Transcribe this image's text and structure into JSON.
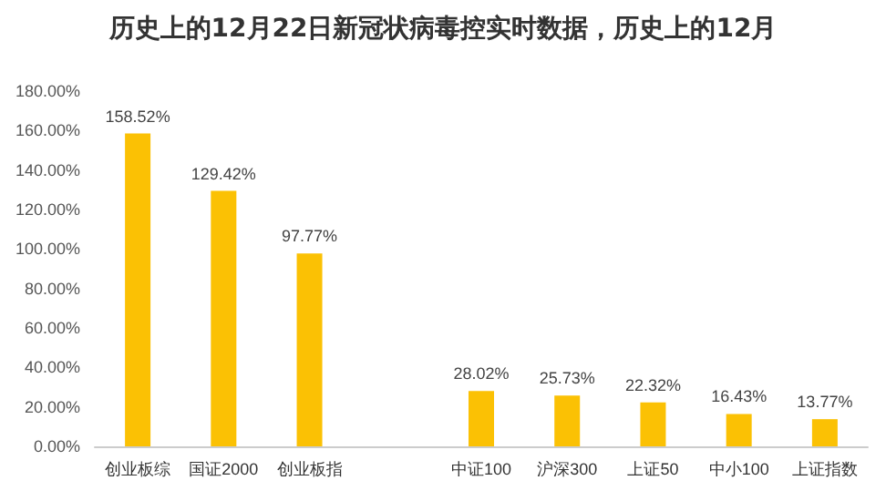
{
  "chart_data": {
    "type": "bar",
    "title": "历史上的12月22日新冠状病毒控实时数据，历史上的12月",
    "categories": [
      "创业板综",
      "国证2000",
      "创业板指",
      null,
      "中证100",
      "沪深300",
      "上证50",
      "中小100",
      "上证指数"
    ],
    "values": [
      158.52,
      129.42,
      97.77,
      null,
      28.02,
      25.73,
      22.32,
      16.43,
      13.77
    ],
    "value_labels": [
      "158.52%",
      "129.42%",
      "97.77%",
      null,
      "28.02%",
      "25.73%",
      "22.32%",
      "16.43%",
      "13.77%"
    ],
    "color": "#fbc104",
    "ylim": [
      0,
      180
    ],
    "yticks": [
      {
        "value": 0,
        "label": "0.00%"
      },
      {
        "value": 20,
        "label": "20.00%"
      },
      {
        "value": 40,
        "label": "40.00%"
      },
      {
        "value": 60,
        "label": "60.00%"
      },
      {
        "value": 80,
        "label": "80.00%"
      },
      {
        "value": 100,
        "label": "100.00%"
      },
      {
        "value": 120,
        "label": "120.00%"
      },
      {
        "value": 140,
        "label": "140.00%"
      },
      {
        "value": 160,
        "label": "160.00%"
      },
      {
        "value": 180,
        "label": "180.00%"
      }
    ],
    "grid": false
  }
}
